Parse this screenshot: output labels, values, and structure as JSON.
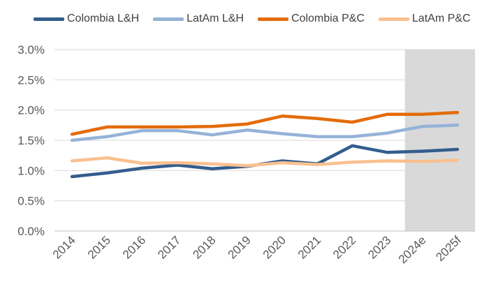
{
  "chart_data": {
    "type": "line",
    "categories": [
      "2014",
      "2015",
      "2016",
      "2017",
      "2018",
      "2019",
      "2020",
      "2021",
      "2022",
      "2023",
      "2024e",
      "2025f"
    ],
    "series": [
      {
        "name": "Colombia L&H",
        "color": "#335D8D",
        "values": [
          0.9,
          0.96,
          1.04,
          1.09,
          1.03,
          1.07,
          1.16,
          1.11,
          1.41,
          1.3,
          1.32,
          1.35
        ]
      },
      {
        "name": "LatAm L&H",
        "color": "#95B3D7",
        "values": [
          1.5,
          1.56,
          1.66,
          1.66,
          1.59,
          1.67,
          1.61,
          1.56,
          1.56,
          1.62,
          1.73,
          1.75
        ]
      },
      {
        "name": "Colombia P&C",
        "color": "#E36C0A",
        "values": [
          1.6,
          1.72,
          1.72,
          1.72,
          1.73,
          1.77,
          1.9,
          1.86,
          1.8,
          1.93,
          1.93,
          1.96
        ]
      },
      {
        "name": "LatAm P&C",
        "color": "#FAC090",
        "values": [
          1.16,
          1.21,
          1.12,
          1.13,
          1.11,
          1.08,
          1.13,
          1.1,
          1.14,
          1.16,
          1.15,
          1.17
        ]
      }
    ],
    "y_ticks": [
      "0.0%",
      "0.5%",
      "1.0%",
      "1.5%",
      "2.0%",
      "2.5%",
      "3.0%"
    ],
    "ylim": [
      0,
      3
    ],
    "shaded_categories": [
      "2024e",
      "2025f"
    ],
    "shade_color": "#D9D9D9",
    "grid": true,
    "legend": "top",
    "title": "",
    "xlabel": "",
    "ylabel": ""
  }
}
